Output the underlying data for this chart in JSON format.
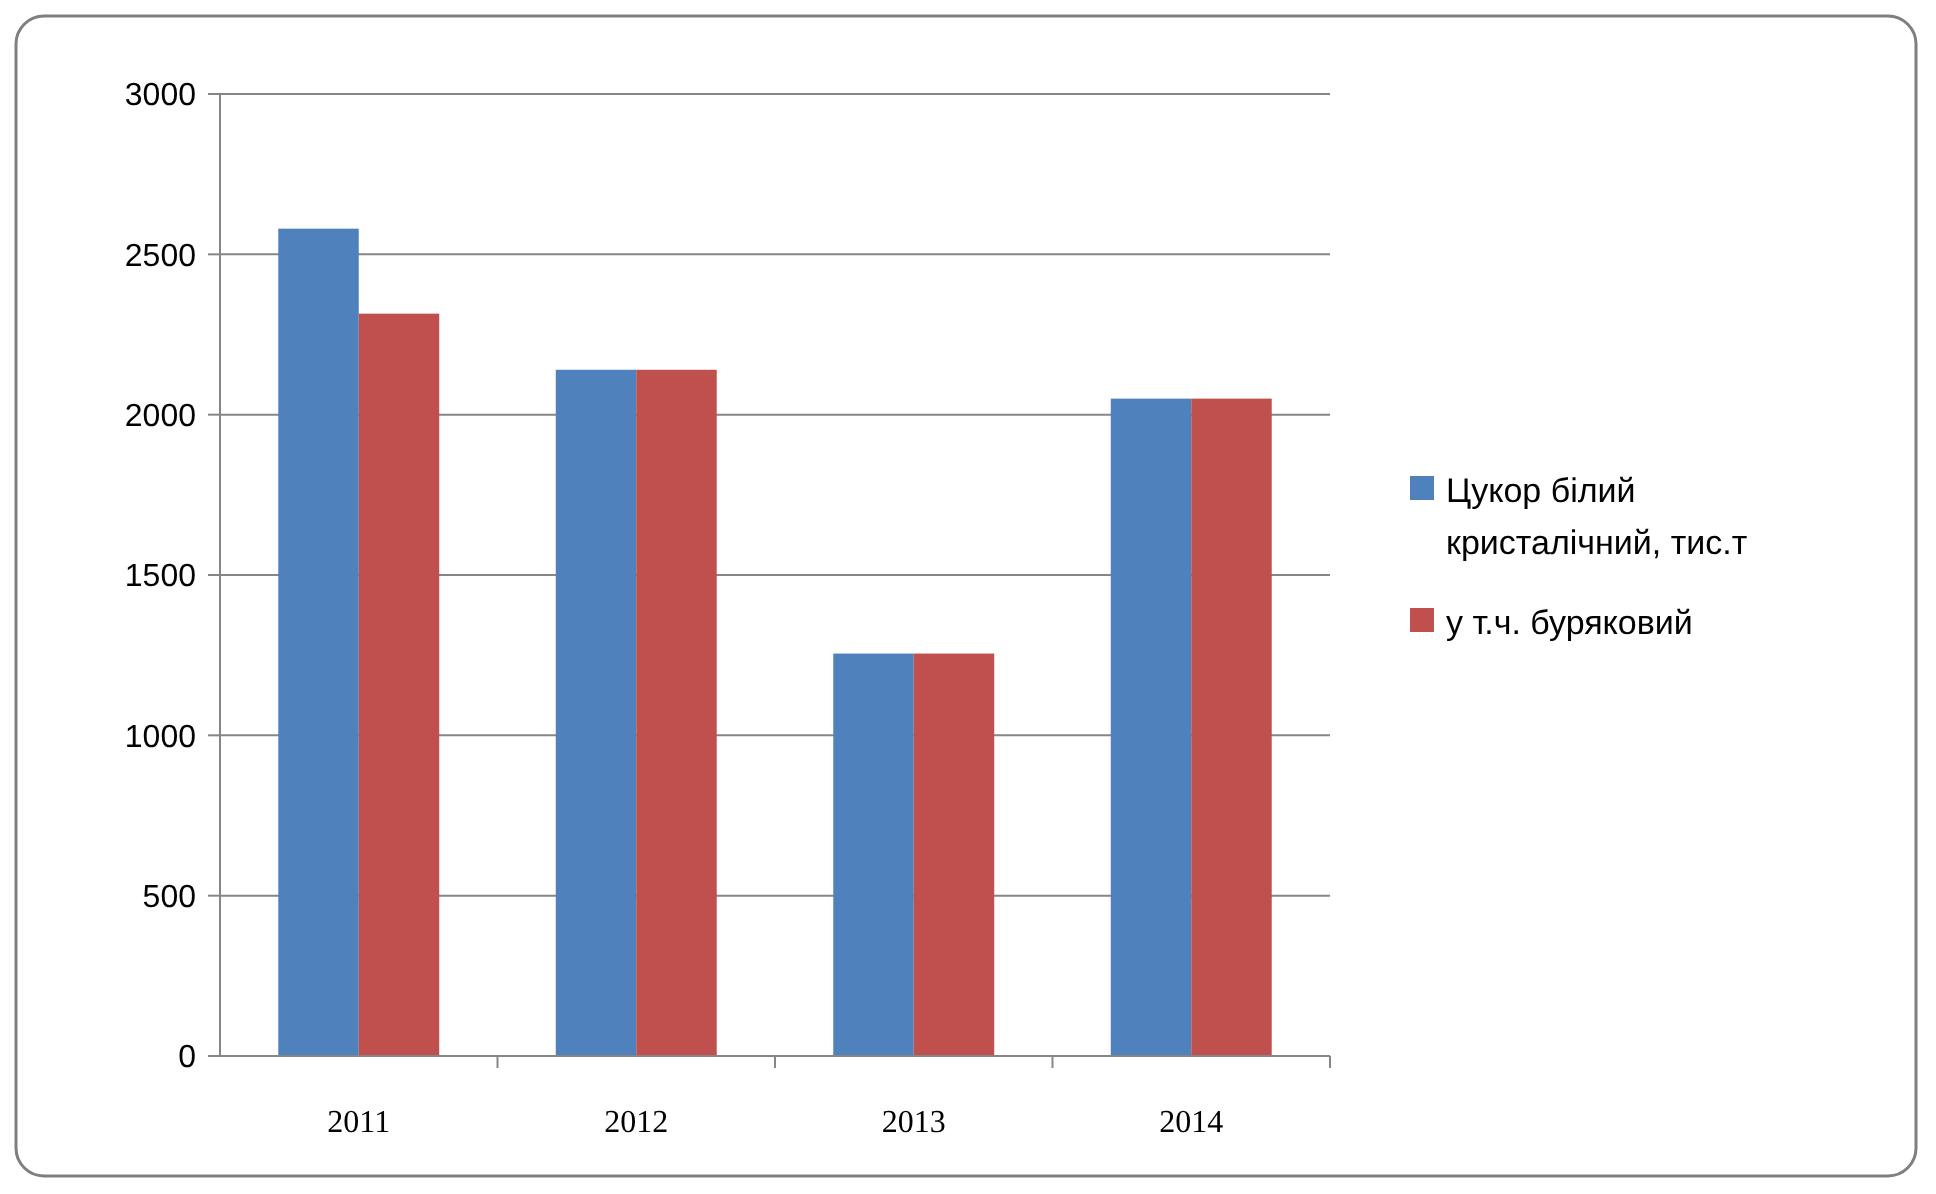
{
  "chart_data": {
    "type": "bar",
    "categories": [
      "2011",
      "2012",
      "2013",
      "2014"
    ],
    "series": [
      {
        "name": "Цукор білий кристалічний, тис.т",
        "color": "#4f81bd",
        "values": [
          2580,
          2140,
          1255,
          2050
        ]
      },
      {
        "name": "у т.ч. буряковий",
        "color": "#c0504d",
        "values": [
          2315,
          2140,
          1255,
          2050
        ]
      }
    ],
    "ylim": [
      0,
      3000
    ],
    "yticks": [
      0,
      500,
      1000,
      1500,
      2000,
      2500,
      3000
    ],
    "grid": "y",
    "legend": "right"
  }
}
